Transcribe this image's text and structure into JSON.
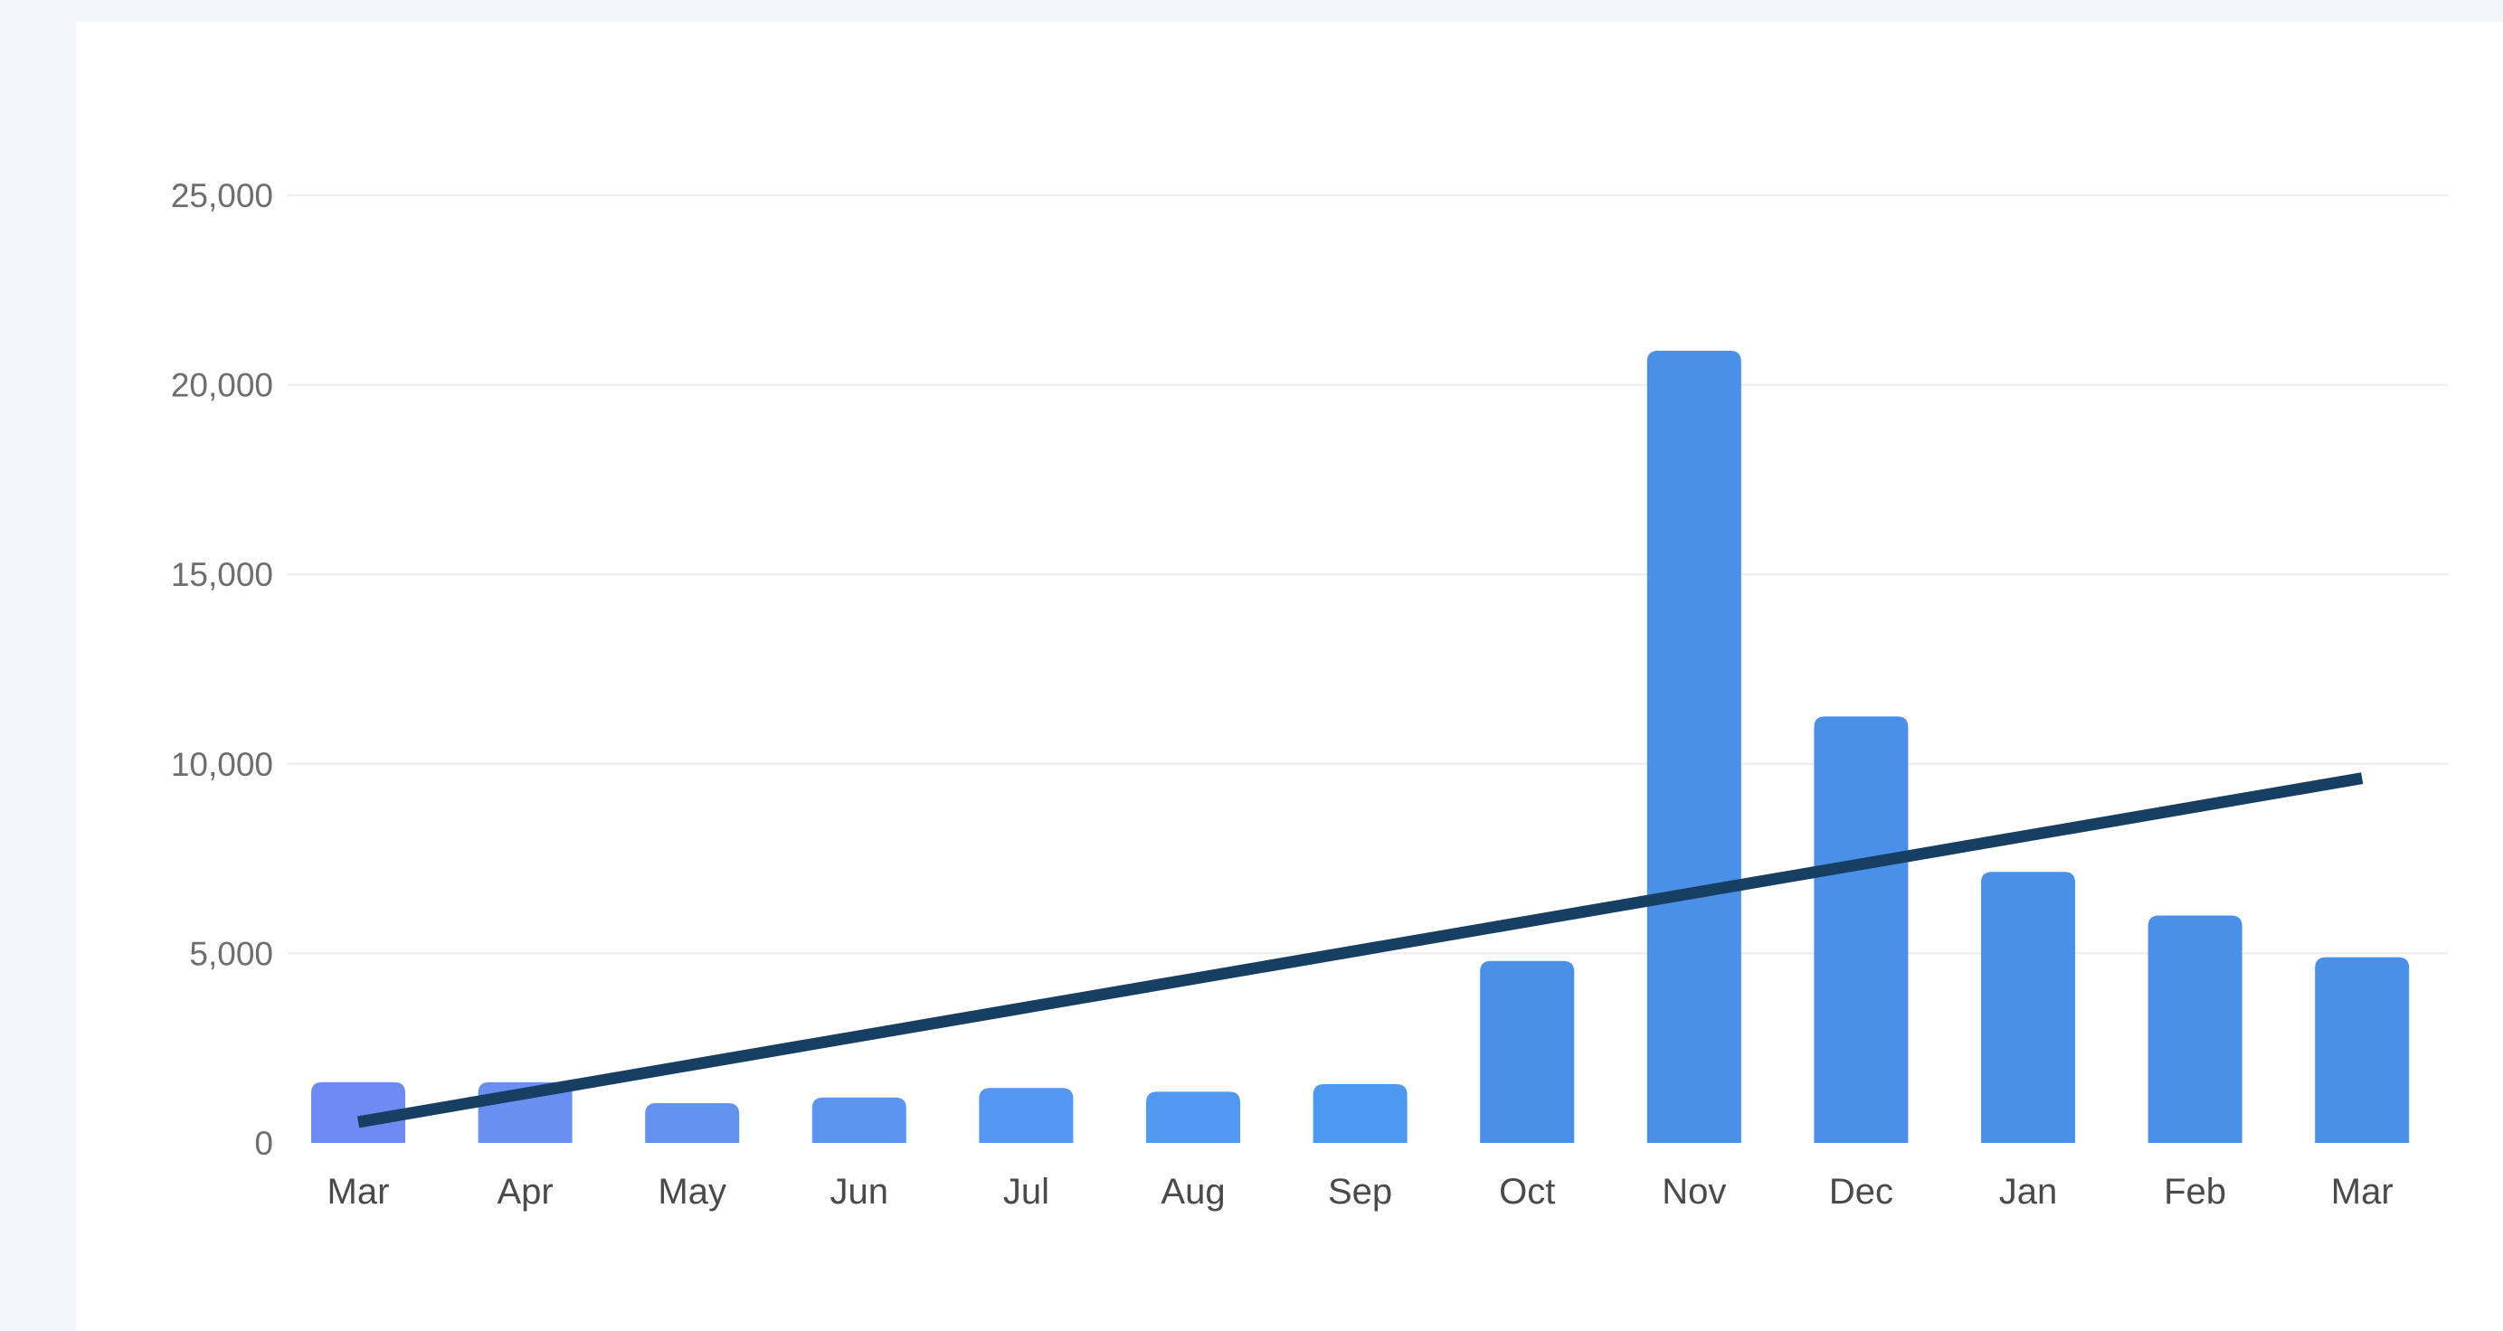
{
  "chart_data": {
    "type": "bar",
    "title": "",
    "xlabel": "",
    "ylabel": "",
    "categories": [
      "Mar",
      "Apr",
      "May",
      "Jun",
      "Jul",
      "Aug",
      "Sep",
      "Oct",
      "Nov",
      "Dec",
      "Jan",
      "Feb",
      "Mar"
    ],
    "series": [
      {
        "type": "bar",
        "values": [
          1600,
          1600,
          1050,
          1200,
          1450,
          1350,
          1550,
          4800,
          20900,
          11250,
          7150,
          6000,
          4900
        ],
        "colors": [
          "#6d8bf3",
          "#6a8ff3",
          "#6392f3",
          "#5c94f2",
          "#5596f2",
          "#5098f1",
          "#4c99f1",
          "#4a90e8",
          "#4a90e8",
          "#4a90e8",
          "#4a90e8",
          "#4a90e8",
          "#4a90e8"
        ]
      },
      {
        "type": "line",
        "style": "trendline",
        "values": [
          550,
          1306,
          2062,
          2818,
          3574,
          4330,
          5086,
          5842,
          6598,
          7354,
          8110,
          8866,
          9622
        ],
        "color": "#173f63"
      }
    ],
    "ylim": [
      0,
      25000
    ],
    "yticks": [
      0,
      5000,
      10000,
      15000,
      20000,
      25000
    ],
    "ytick_labels": [
      "0",
      "5,000",
      "10,000",
      "15,000",
      "20,000",
      "25,000"
    ],
    "grid": true,
    "legend": "none"
  }
}
